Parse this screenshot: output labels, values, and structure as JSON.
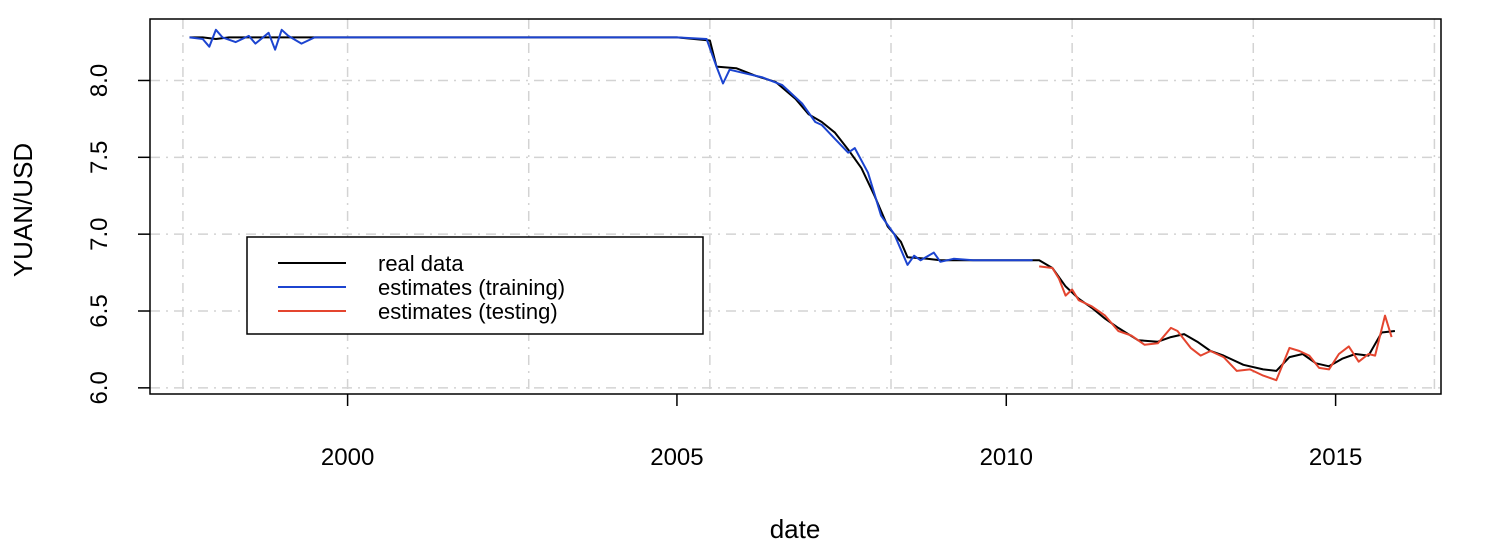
{
  "chart_data": {
    "type": "line",
    "title": "",
    "xlabel": "date",
    "ylabel": "YUAN/USD",
    "xlim": [
      1997.0,
      2016.6
    ],
    "ylim": [
      5.96,
      8.4
    ],
    "x_ticks": [
      2000,
      2005,
      2010,
      2015
    ],
    "x_tick_labels": [
      "2000",
      "2005",
      "2010",
      "2015"
    ],
    "y_ticks": [
      6.0,
      6.5,
      7.0,
      7.5,
      8.0
    ],
    "y_tick_labels": [
      "6.0",
      "6.5",
      "7.0",
      "7.5",
      "8.0"
    ],
    "grid_x": [
      1997.5,
      2000.0,
      2002.75,
      2005.5,
      2008.25,
      2011.0,
      2013.75,
      2016.5
    ],
    "grid_y": [
      6.0,
      6.5,
      7.0,
      7.5,
      8.0
    ],
    "grid": true,
    "legend_position": "left-middle",
    "series": [
      {
        "name": "real data",
        "color": "#000000",
        "x": [
          1997.6,
          1997.8,
          1998.0,
          1998.2,
          1998.4,
          1998.6,
          1998.8,
          1999.0,
          1999.2,
          2000.0,
          2001.0,
          2002.0,
          2003.0,
          2004.0,
          2005.0,
          2005.5,
          2005.6,
          2005.9,
          2006.2,
          2006.5,
          2006.8,
          2007.0,
          2007.2,
          2007.4,
          2007.6,
          2007.8,
          2008.0,
          2008.2,
          2008.4,
          2008.5,
          2008.8,
          2009.0,
          2009.5,
          2010.0,
          2010.5,
          2010.7,
          2010.9,
          2011.1,
          2011.3,
          2011.5,
          2011.7,
          2012.0,
          2012.3,
          2012.5,
          2012.7,
          2012.9,
          2013.1,
          2013.3,
          2013.6,
          2013.9,
          2014.1,
          2014.3,
          2014.5,
          2014.7,
          2014.9,
          2015.1,
          2015.3,
          2015.5,
          2015.7,
          2015.9
        ],
        "values": [
          8.28,
          8.28,
          8.27,
          8.28,
          8.28,
          8.28,
          8.28,
          8.28,
          8.28,
          8.28,
          8.28,
          8.28,
          8.28,
          8.28,
          8.28,
          8.26,
          8.09,
          8.08,
          8.03,
          7.99,
          7.88,
          7.78,
          7.73,
          7.66,
          7.55,
          7.43,
          7.25,
          7.05,
          6.95,
          6.85,
          6.84,
          6.83,
          6.83,
          6.83,
          6.83,
          6.78,
          6.66,
          6.58,
          6.52,
          6.45,
          6.39,
          6.31,
          6.3,
          6.33,
          6.35,
          6.3,
          6.24,
          6.21,
          6.15,
          6.12,
          6.11,
          6.2,
          6.22,
          6.16,
          6.14,
          6.19,
          6.22,
          6.21,
          6.36,
          6.37
        ]
      },
      {
        "name": "estimates (training)",
        "color": "#1c44d0",
        "x": [
          1997.6,
          1997.8,
          1997.9,
          1998.0,
          1998.1,
          1998.3,
          1998.5,
          1998.6,
          1998.8,
          1998.9,
          1999.0,
          1999.1,
          1999.3,
          1999.5,
          2000.0,
          2001.0,
          2002.0,
          2003.0,
          2004.0,
          2005.0,
          2005.45,
          2005.6,
          2005.7,
          2005.8,
          2006.0,
          2006.3,
          2006.6,
          2006.9,
          2007.1,
          2007.2,
          2007.4,
          2007.6,
          2007.7,
          2007.9,
          2008.1,
          2008.3,
          2008.5,
          2008.6,
          2008.7,
          2008.9,
          2009.0,
          2009.2,
          2009.5,
          2010.0,
          2010.4
        ],
        "values": [
          8.28,
          8.27,
          8.22,
          8.33,
          8.28,
          8.25,
          8.29,
          8.24,
          8.31,
          8.2,
          8.33,
          8.29,
          8.24,
          8.28,
          8.28,
          8.28,
          8.28,
          8.28,
          8.28,
          8.28,
          8.27,
          8.09,
          7.98,
          8.07,
          8.05,
          8.02,
          7.97,
          7.85,
          7.73,
          7.71,
          7.62,
          7.53,
          7.56,
          7.4,
          7.12,
          7.0,
          6.8,
          6.86,
          6.83,
          6.88,
          6.82,
          6.84,
          6.83,
          6.83,
          6.83
        ]
      },
      {
        "name": "estimates (testing)",
        "color": "#e4452f",
        "x": [
          2010.5,
          2010.7,
          2010.8,
          2010.9,
          2011.0,
          2011.1,
          2011.3,
          2011.5,
          2011.7,
          2011.9,
          2012.1,
          2012.3,
          2012.5,
          2012.6,
          2012.8,
          2012.95,
          2013.1,
          2013.3,
          2013.5,
          2013.7,
          2013.9,
          2014.1,
          2014.3,
          2014.45,
          2014.6,
          2014.75,
          2014.9,
          2015.05,
          2015.2,
          2015.35,
          2015.5,
          2015.6,
          2015.75,
          2015.85
        ],
        "values": [
          6.79,
          6.78,
          6.71,
          6.6,
          6.64,
          6.57,
          6.53,
          6.47,
          6.37,
          6.34,
          6.28,
          6.29,
          6.39,
          6.37,
          6.26,
          6.21,
          6.24,
          6.2,
          6.11,
          6.12,
          6.08,
          6.05,
          6.26,
          6.24,
          6.21,
          6.13,
          6.12,
          6.22,
          6.27,
          6.17,
          6.22,
          6.21,
          6.47,
          6.33
        ]
      }
    ]
  }
}
